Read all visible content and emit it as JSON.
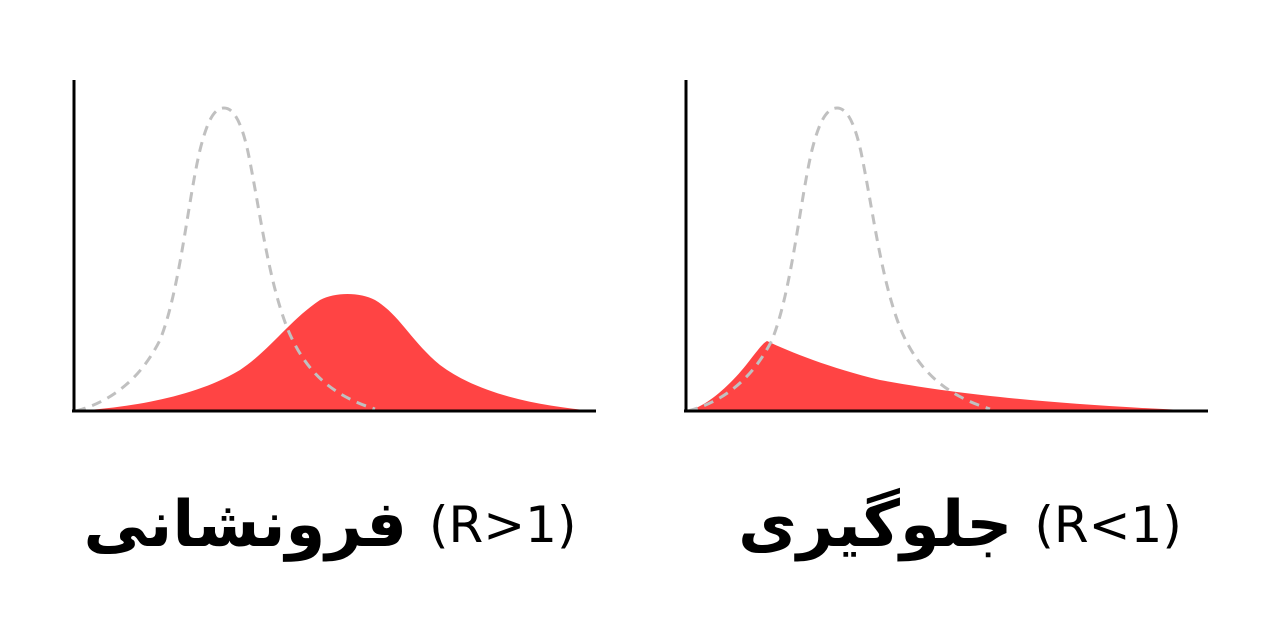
{
  "colors": {
    "background": "#ffffff",
    "fill": "#ff4444",
    "reference_curve": "#c0c0c0",
    "axis": "#000000"
  },
  "panels": [
    {
      "id": "left",
      "label": "فرونشانی",
      "ratio": "(R>1)",
      "shape": "wide bell curve shifted to the right",
      "reference": "dashed narrow bell curve"
    },
    {
      "id": "right",
      "label": "جلوگیری",
      "ratio": "(R<1)",
      "shape": "early peak with long right tail",
      "reference": "dashed narrow bell curve"
    }
  ]
}
